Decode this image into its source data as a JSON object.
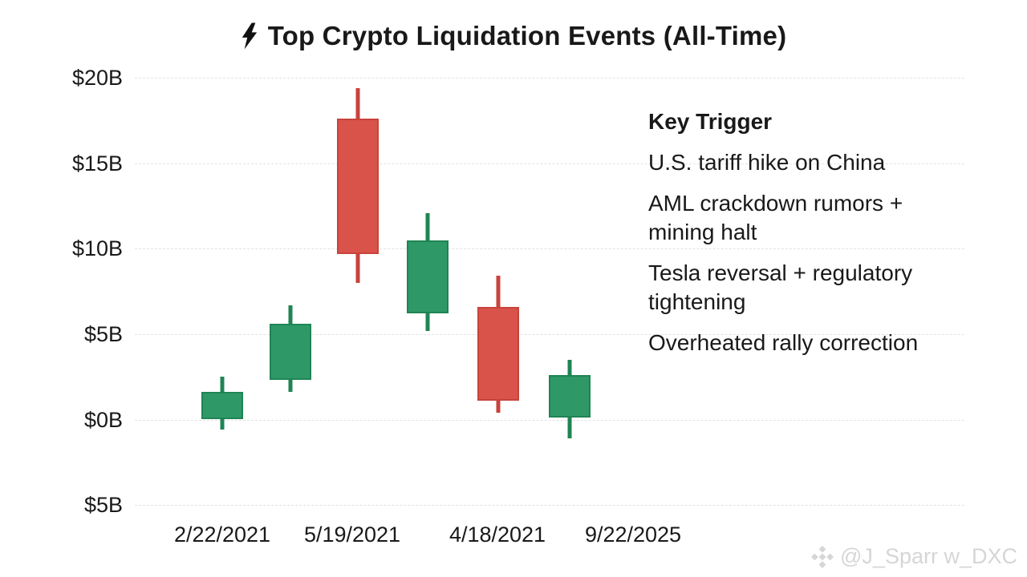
{
  "title": {
    "icon": "lightning-bolt",
    "text": "Top Crypto Liquidation Events (All-Time)"
  },
  "legend": {
    "header": "Key Trigger",
    "items": [
      {
        "label": "U.S. tariff hike on China"
      },
      {
        "label": "AML crackdown rumors + mining halt"
      },
      {
        "label": "Tesla reversal + regulatory tightening"
      },
      {
        "label": "Overheated rally correction"
      }
    ]
  },
  "watermark": {
    "icon": "binance-diamond",
    "handle": "@J_Sparr w_DXC"
  },
  "chart_data": {
    "type": "candlestick",
    "title": "Top Crypto Liquidation Events (All-Time)",
    "unit": "billions of USD",
    "y_tick_labels": [
      "$20B",
      "$15B",
      "$10B",
      "$5B",
      "$0B",
      "$5B"
    ],
    "y_tick_values": [
      20,
      15,
      10,
      5,
      0,
      -5
    ],
    "ylim": [
      -5,
      20
    ],
    "grid": "dashed-horizontal",
    "x_tick_labels": [
      "2/22/2021",
      "5/19/2021",
      "4/18/2021",
      "9/22/2025"
    ],
    "candles": [
      {
        "open": 0.0,
        "close": 1.6,
        "high": 2.5,
        "low": -0.6,
        "direction": "up"
      },
      {
        "open": 2.3,
        "close": 5.6,
        "high": 6.7,
        "low": 1.6,
        "direction": "up"
      },
      {
        "open": 17.6,
        "close": 9.7,
        "high": 19.4,
        "low": 8.0,
        "direction": "down"
      },
      {
        "open": 6.2,
        "close": 10.5,
        "high": 12.1,
        "low": 5.2,
        "direction": "up"
      },
      {
        "open": 6.6,
        "close": 1.1,
        "high": 8.4,
        "low": 0.4,
        "direction": "down"
      },
      {
        "open": 0.1,
        "close": 2.6,
        "high": 3.5,
        "low": -1.1,
        "direction": "up"
      }
    ],
    "colors": {
      "up": "#2e9966",
      "up_border": "#1f8455",
      "down": "#d9534b",
      "down_border": "#c7433c",
      "grid": "#e2e2e2",
      "text": "#191919",
      "watermark": "#d6d6d6"
    },
    "legend_position": "upper-right",
    "legend_title": "Key Trigger"
  }
}
